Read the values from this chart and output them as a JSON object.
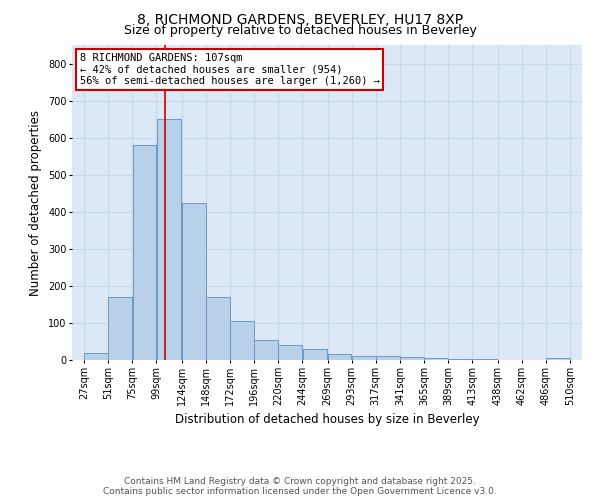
{
  "title_line1": "8, RICHMOND GARDENS, BEVERLEY, HU17 8XP",
  "title_line2": "Size of property relative to detached houses in Beverley",
  "xlabel": "Distribution of detached houses by size in Beverley",
  "ylabel": "Number of detached properties",
  "bar_left_edges": [
    27,
    51,
    75,
    99,
    124,
    148,
    172,
    196,
    220,
    244,
    269,
    293,
    317,
    341,
    365,
    389,
    413,
    438,
    462,
    486
  ],
  "bar_widths": [
    24,
    24,
    24,
    25,
    24,
    24,
    24,
    24,
    24,
    25,
    24,
    24,
    24,
    24,
    24,
    24,
    25,
    24,
    24,
    24
  ],
  "bar_heights": [
    20,
    170,
    580,
    650,
    425,
    170,
    105,
    55,
    40,
    30,
    15,
    10,
    10,
    8,
    5,
    3,
    2,
    1,
    1,
    5
  ],
  "bar_color": "#b8d0e8",
  "bar_edgecolor": "#6699cc",
  "property_line_x": 107,
  "property_line_color": "#cc0000",
  "annotation_text": "8 RICHMOND GARDENS: 107sqm\n← 42% of detached houses are smaller (954)\n56% of semi-detached houses are larger (1,260) →",
  "annotation_box_color": "#cc0000",
  "annotation_text_color": "#000000",
  "ylim": [
    0,
    850
  ],
  "xlim": [
    15,
    522
  ],
  "yticks": [
    0,
    100,
    200,
    300,
    400,
    500,
    600,
    700,
    800
  ],
  "xtick_labels": [
    "27sqm",
    "51sqm",
    "75sqm",
    "99sqm",
    "124sqm",
    "148sqm",
    "172sqm",
    "196sqm",
    "220sqm",
    "244sqm",
    "269sqm",
    "293sqm",
    "317sqm",
    "341sqm",
    "365sqm",
    "389sqm",
    "413sqm",
    "438sqm",
    "462sqm",
    "486sqm",
    "510sqm"
  ],
  "xtick_positions": [
    27,
    51,
    75,
    99,
    124,
    148,
    172,
    196,
    220,
    244,
    269,
    293,
    317,
    341,
    365,
    389,
    413,
    438,
    462,
    486,
    510
  ],
  "grid_color": "#c8d8ec",
  "background_color": "#dce8f5",
  "footer_text": "Contains HM Land Registry data © Crown copyright and database right 2025.\nContains public sector information licensed under the Open Government Licence v3.0.",
  "title_fontsize": 10,
  "subtitle_fontsize": 9,
  "axis_label_fontsize": 8.5,
  "tick_fontsize": 7,
  "footer_fontsize": 6.5,
  "annot_fontsize": 7.5
}
